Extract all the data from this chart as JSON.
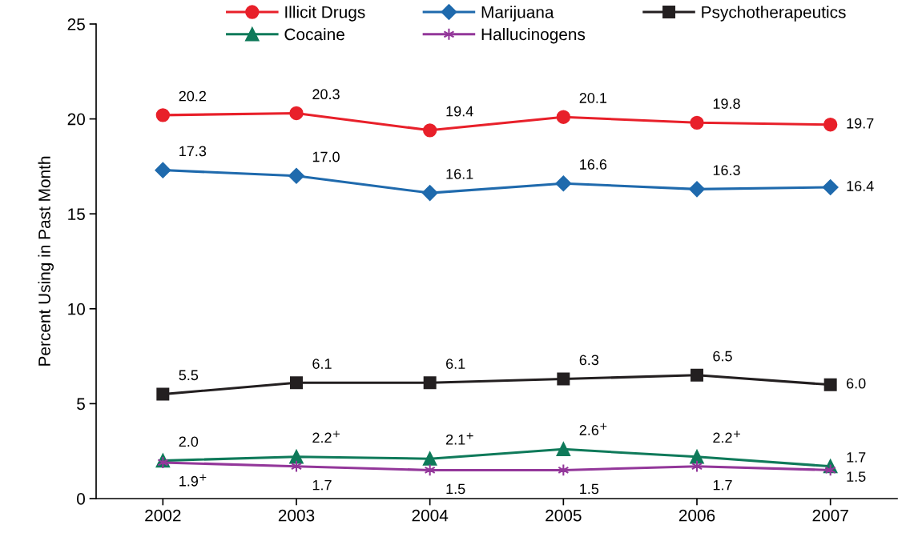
{
  "chart_data": {
    "type": "line",
    "ylabel": "Percent Using in Past Month",
    "categories": [
      "2002",
      "2003",
      "2004",
      "2005",
      "2006",
      "2007"
    ],
    "ylim": [
      0,
      25
    ],
    "yticks": [
      0,
      5,
      10,
      15,
      20,
      25
    ],
    "grid": false,
    "legend": "top",
    "series": [
      {
        "name": "Illicit Drugs",
        "color": "#e8202a",
        "marker": "circle",
        "values": [
          20.2,
          20.3,
          19.4,
          20.1,
          19.8,
          19.7
        ],
        "value_labels": [
          "20.2",
          "20.3",
          "19.4",
          "20.1",
          "19.8",
          "19.7"
        ]
      },
      {
        "name": "Marijuana",
        "color": "#1f6aad",
        "marker": "diamond",
        "values": [
          17.3,
          17.0,
          16.1,
          16.6,
          16.3,
          16.4
        ],
        "value_labels": [
          "17.3",
          "17.0",
          "16.1",
          "16.6",
          "16.3",
          "16.4"
        ]
      },
      {
        "name": "Psychotherapeutics",
        "color": "#231f20",
        "marker": "square",
        "values": [
          5.5,
          6.1,
          6.1,
          6.3,
          6.5,
          6.0
        ],
        "value_labels": [
          "5.5",
          "6.1",
          "6.1",
          "6.3",
          "6.5",
          "6.0"
        ]
      },
      {
        "name": "Cocaine",
        "color": "#0f7a5a",
        "marker": "triangle",
        "values": [
          2.0,
          2.2,
          2.1,
          2.6,
          2.2,
          1.7
        ],
        "value_labels": [
          "2.0",
          "2.2$^{+}$",
          "2.1$^{+}$",
          "2.6$^{+}$",
          "2.2$^{+}$",
          "1.7"
        ]
      },
      {
        "name": "Hallucinogens",
        "color": "#93379a",
        "marker": "cross",
        "values": [
          1.9,
          1.7,
          1.5,
          1.5,
          1.7,
          1.5
        ],
        "value_labels": [
          "1.9$^{+}$",
          "1.7",
          "1.5",
          "1.5",
          "1.7",
          "1.5"
        ]
      }
    ]
  }
}
